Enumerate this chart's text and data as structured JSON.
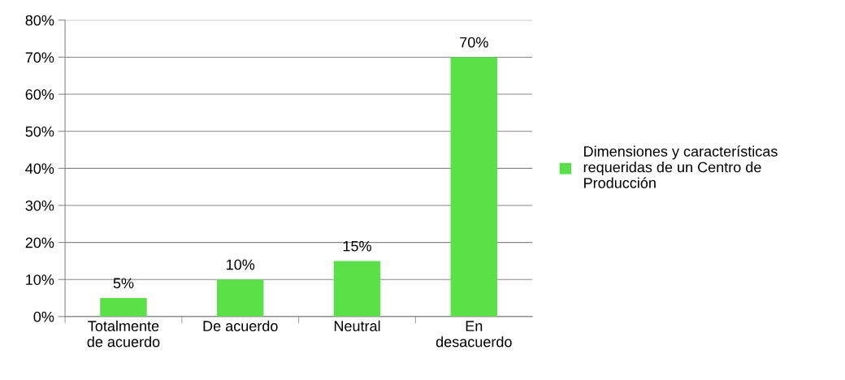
{
  "chart_data": {
    "type": "bar",
    "categories": [
      "Totalmente\nde acuerdo",
      "De acuerdo",
      "Neutral",
      "En\ndesacuerdo"
    ],
    "series": [
      {
        "name": "Dimensiones y características\nrequeridas de un Centro de\nProducción",
        "color": "#5ce04a",
        "values": [
          5,
          10,
          15,
          70
        ],
        "value_labels": [
          "5%",
          "10%",
          "15%",
          "70%"
        ]
      }
    ],
    "ylim": [
      0,
      80
    ],
    "yticks": [
      {
        "value": 0,
        "label": "0%"
      },
      {
        "value": 10,
        "label": "10%"
      },
      {
        "value": 20,
        "label": "20%"
      },
      {
        "value": 30,
        "label": "30%"
      },
      {
        "value": 40,
        "label": "40%"
      },
      {
        "value": 50,
        "label": "50%"
      },
      {
        "value": 60,
        "label": "60%"
      },
      {
        "value": 70,
        "label": "70%"
      },
      {
        "value": 80,
        "label": "80%"
      }
    ],
    "grid": "y",
    "legend": "right"
  }
}
